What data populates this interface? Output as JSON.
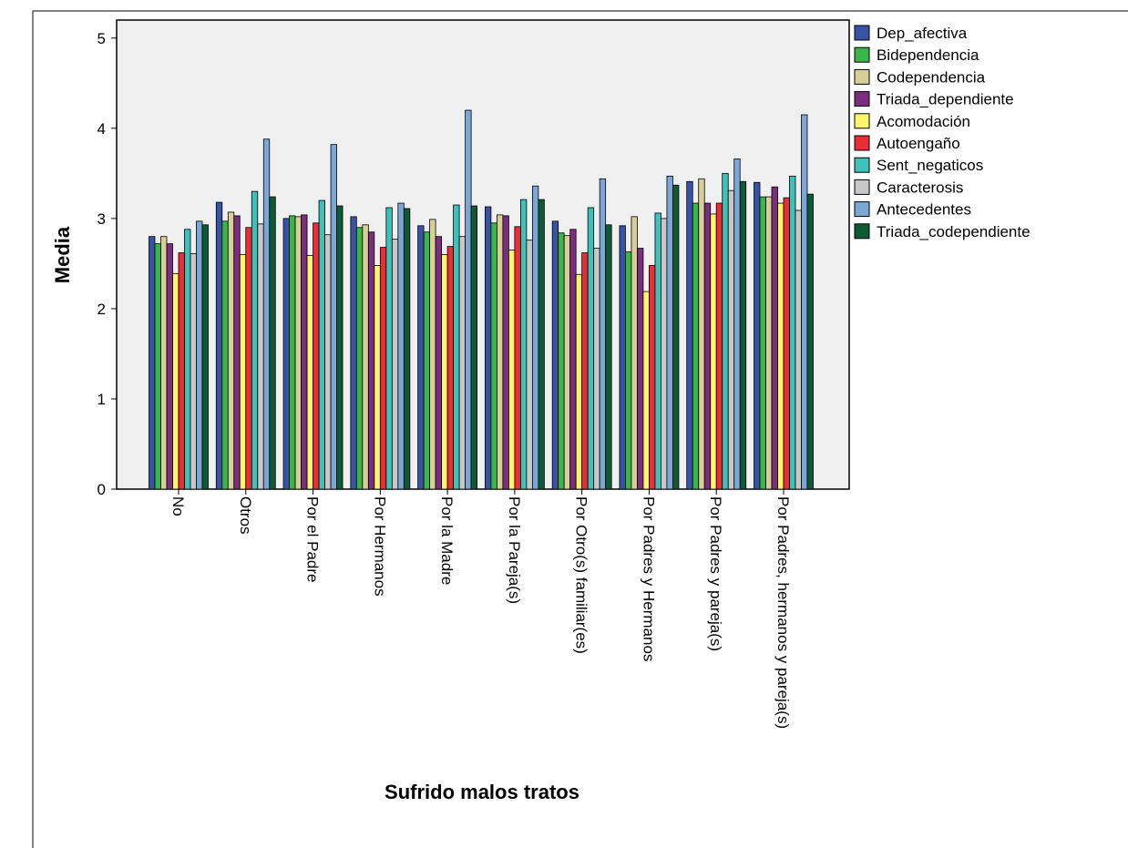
{
  "chart_data": {
    "type": "bar",
    "xlabel": "Sufrido malos tratos",
    "ylabel": "Media",
    "ylim": [
      0,
      5.2
    ],
    "yticks": [
      0,
      1,
      2,
      3,
      4,
      5
    ],
    "grid": false,
    "legend_position": "right",
    "plot_background": "#f0f0f0",
    "categories": [
      "No",
      "Otros",
      "Por el Padre",
      "Por Hermanos",
      "Por la Madre",
      "Por la Pareja(s)",
      "Por Otro(s) familiar(es)",
      "Por Padres y Hermanos",
      "Por Padres y pareja(s)",
      "Por Padres, hermanos y pareja(s)"
    ],
    "series": [
      {
        "name": "Dep_afectiva",
        "color": "#3953a4",
        "values": [
          2.8,
          3.18,
          3.0,
          3.02,
          2.92,
          3.13,
          2.97,
          2.92,
          3.41,
          3.4
        ]
      },
      {
        "name": "Bidependencia",
        "color": "#39b54a",
        "values": [
          2.72,
          2.97,
          3.03,
          2.9,
          2.85,
          2.95,
          2.84,
          2.63,
          3.17,
          3.24
        ]
      },
      {
        "name": "Codependencia",
        "color": "#d6cf96",
        "values": [
          2.8,
          3.07,
          3.02,
          2.93,
          2.99,
          3.04,
          2.81,
          3.02,
          3.44,
          3.24
        ]
      },
      {
        "name": "Triada_dependiente",
        "color": "#7b2d7e",
        "values": [
          2.72,
          3.03,
          3.04,
          2.85,
          2.8,
          3.03,
          2.88,
          2.67,
          3.17,
          3.35
        ]
      },
      {
        "name": "Acomodación",
        "color": "#fdf56b",
        "values": [
          2.39,
          2.6,
          2.59,
          2.48,
          2.6,
          2.65,
          2.38,
          2.19,
          3.05,
          3.17
        ]
      },
      {
        "name": "Autoengaño",
        "color": "#ed2d36",
        "values": [
          2.62,
          2.9,
          2.95,
          2.68,
          2.69,
          2.91,
          2.62,
          2.48,
          3.17,
          3.23
        ]
      },
      {
        "name": "Sent_negaticos",
        "color": "#3ec1b8",
        "values": [
          2.88,
          3.3,
          3.2,
          3.12,
          3.15,
          3.21,
          3.12,
          3.06,
          3.5,
          3.47
        ]
      },
      {
        "name": "Caracterosis",
        "color": "#c8c8c8",
        "values": [
          2.61,
          2.94,
          2.82,
          2.77,
          2.8,
          2.76,
          2.67,
          3.0,
          3.31,
          3.09
        ]
      },
      {
        "name": "Antecedentes",
        "color": "#7ba7d7",
        "values": [
          2.97,
          3.88,
          3.82,
          3.17,
          4.2,
          3.36,
          3.44,
          3.47,
          3.66,
          4.15
        ]
      },
      {
        "name": "Triada_codependiente",
        "color": "#0e5a35",
        "values": [
          2.93,
          3.24,
          3.14,
          3.11,
          3.14,
          3.21,
          2.93,
          3.37,
          3.41,
          3.27
        ]
      }
    ]
  }
}
